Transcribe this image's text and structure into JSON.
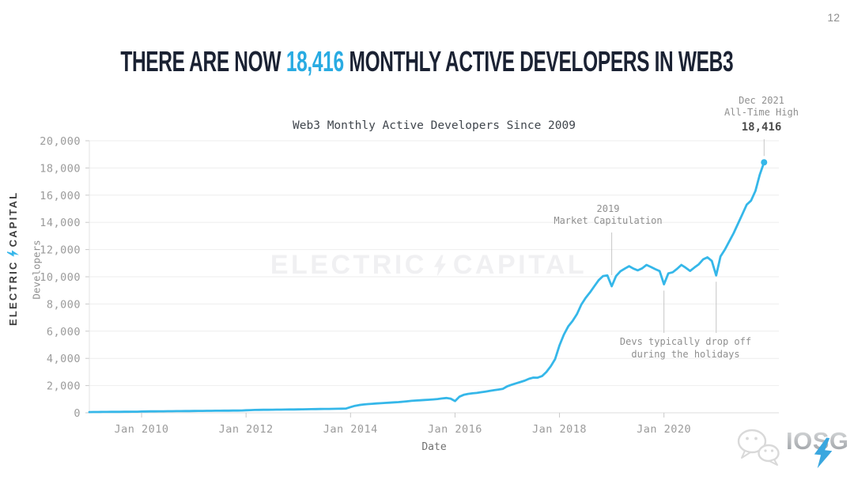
{
  "page": {
    "number": "12"
  },
  "header": {
    "prefix": "THERE ARE NOW",
    "highlight": "18,416",
    "suffix": "MONTHLY ACTIVE DEVELOPERS IN WEB3",
    "accent_color": "#29abe2",
    "text_color": "#1b2233"
  },
  "branding": {
    "left_vertical": {
      "word1": "ELECTRIC",
      "word2": "CAPITAL"
    },
    "watermark": {
      "word1": "ELECTRIC",
      "word2": "CAPITAL"
    },
    "iosg": {
      "text": "IOSG"
    }
  },
  "chart_data": {
    "type": "line",
    "title": "Web3 Monthly Active Developers Since 2009",
    "xlabel": "Date",
    "ylabel": "Developers",
    "grid": "horizontal",
    "ylim": [
      0,
      20000
    ],
    "xlim_years": [
      2009,
      2022.2
    ],
    "y_ticks": [
      {
        "value": 0,
        "label": "0"
      },
      {
        "value": 2000,
        "label": "2,000"
      },
      {
        "value": 4000,
        "label": "4,000"
      },
      {
        "value": 6000,
        "label": "6,000"
      },
      {
        "value": 8000,
        "label": "8,000"
      },
      {
        "value": 10000,
        "label": "10,000"
      },
      {
        "value": 12000,
        "label": "12,000"
      },
      {
        "value": 14000,
        "label": "14,000"
      },
      {
        "value": 16000,
        "label": "16,000"
      },
      {
        "value": 18000,
        "label": "18,000"
      },
      {
        "value": 20000,
        "label": "20,000"
      }
    ],
    "x_ticks": [
      {
        "year": 2010,
        "label": "Jan 2010"
      },
      {
        "year": 2012,
        "label": "Jan 2012"
      },
      {
        "year": 2014,
        "label": "Jan 2014"
      },
      {
        "year": 2016,
        "label": "Jan 2016"
      },
      {
        "year": 2018,
        "label": "Jan 2018"
      },
      {
        "year": 2020,
        "label": "Jan 2020"
      }
    ],
    "series": [
      {
        "name": "Web3 Monthly Active Developers",
        "color": "#35b7e9",
        "start_year": 2009,
        "interval": "monthly",
        "values": [
          55,
          58,
          60,
          62,
          65,
          68,
          70,
          72,
          75,
          78,
          80,
          84,
          92,
          98,
          103,
          107,
          110,
          113,
          116,
          119,
          122,
          125,
          127,
          130,
          134,
          137,
          140,
          143,
          146,
          149,
          152,
          155,
          158,
          161,
          164,
          167,
          185,
          200,
          210,
          215,
          219,
          223,
          227,
          231,
          235,
          239,
          243,
          247,
          252,
          257,
          262,
          267,
          272,
          277,
          282,
          287,
          292,
          298,
          305,
          315,
          420,
          510,
          570,
          610,
          640,
          665,
          685,
          705,
          725,
          745,
          765,
          785,
          815,
          845,
          875,
          900,
          920,
          940,
          960,
          985,
          1010,
          1050,
          1090,
          1040,
          860,
          1180,
          1320,
          1390,
          1430,
          1460,
          1510,
          1560,
          1610,
          1660,
          1710,
          1760,
          1950,
          2060,
          2160,
          2260,
          2360,
          2500,
          2590,
          2580,
          2700,
          3000,
          3420,
          3950,
          4950,
          5750,
          6350,
          6750,
          7250,
          7950,
          8450,
          8850,
          9300,
          9750,
          10050,
          10100,
          9300,
          10050,
          10400,
          10600,
          10780,
          10600,
          10470,
          10620,
          10870,
          10720,
          10560,
          10420,
          9450,
          10250,
          10330,
          10580,
          10870,
          10660,
          10430,
          10680,
          10920,
          11280,
          11430,
          11160,
          10100,
          11500,
          12000,
          12600,
          13200,
          13900,
          14600,
          15300,
          15600,
          16300,
          17500,
          18416
        ]
      }
    ],
    "end_point": {
      "date": "Dec 2021",
      "value": 18416
    },
    "annotations": [
      {
        "id": "ath",
        "lines": [
          "Dec 2021",
          "All-Time High"
        ],
        "value_label": "18,416",
        "points_to": {
          "year": 2021.917,
          "value": 18416
        }
      },
      {
        "id": "capitulation",
        "lines": [
          "2019",
          "Market Capitulation"
        ],
        "points_to": {
          "year": 2019.0,
          "value": 9300
        }
      },
      {
        "id": "holidays",
        "lines": [
          "Devs typically drop off",
          "during the holidays"
        ],
        "points_to": [
          {
            "year": 2020.0,
            "value": 9450
          },
          {
            "year": 2021.0,
            "value": 10100
          }
        ]
      }
    ]
  }
}
